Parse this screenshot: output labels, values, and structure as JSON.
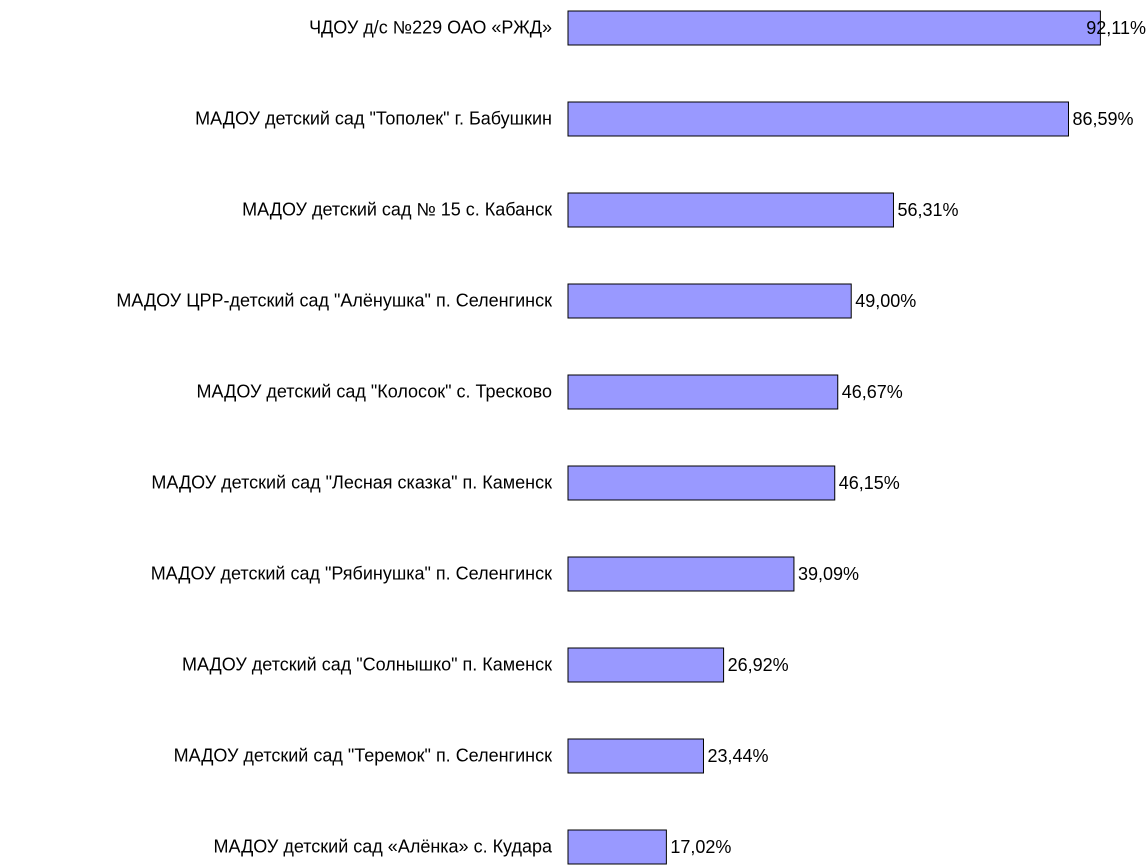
{
  "chart_data": {
    "type": "bar",
    "orientation": "horizontal",
    "categories": [
      "ЧДОУ д/с №229 ОАО «РЖД»",
      "МАДОУ детский сад \"Тополек\" г. Бабушкин",
      "МАДОУ детский сад № 15 с. Кабанск",
      "МАДОУ ЦРР-детский сад \"Алёнушка\" п. Селенгинск",
      "МАДОУ детский сад \"Колосок\" с. Тресково",
      "МАДОУ детский сад \"Лесная сказка\" п. Каменск",
      "МАДОУ детский сад \"Рябинушка\" п. Селенгинск",
      "МАДОУ детский сад \"Солнышко\" п. Каменск",
      "МАДОУ детский сад \"Теремок\" п. Селенгинск",
      "МАДОУ детский сад «Алёнка» с. Кудара"
    ],
    "values": [
      92.11,
      86.59,
      56.31,
      49.0,
      46.67,
      46.15,
      39.09,
      26.92,
      23.44,
      17.02
    ],
    "value_labels": [
      "92,11%",
      "86,59%",
      "56,31%",
      "49,00%",
      "46,67%",
      "46,15%",
      "39,09%",
      "26,92%",
      "23,44%",
      "17,02%"
    ],
    "color": "#9999ff",
    "xlim": [
      0,
      100
    ]
  }
}
